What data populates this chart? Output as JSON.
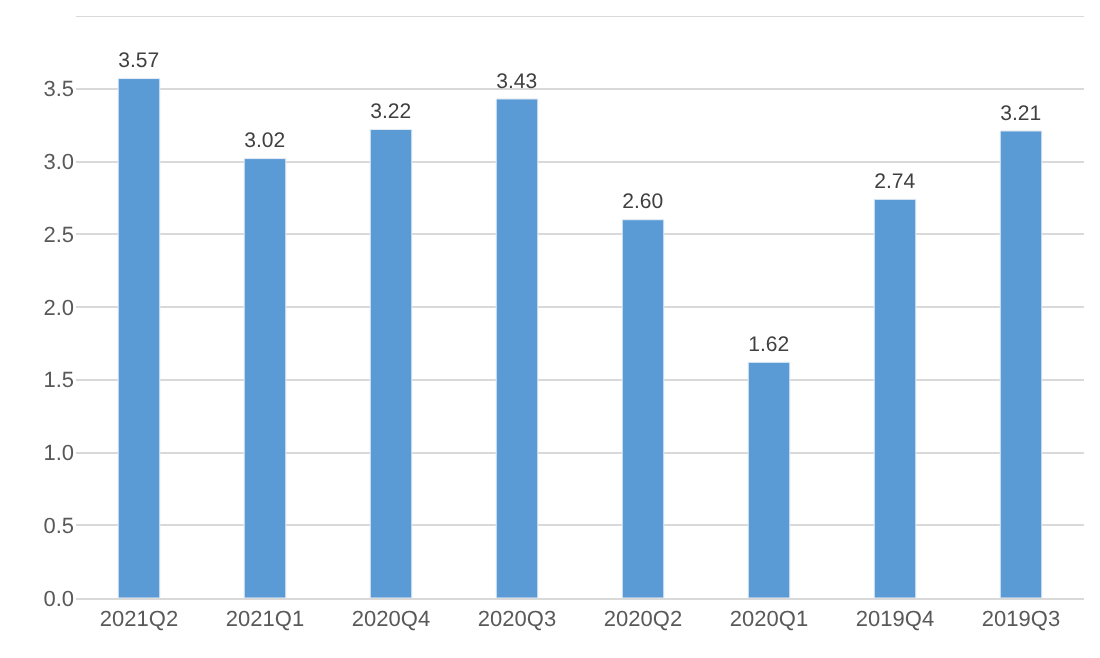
{
  "chart_data": {
    "type": "bar",
    "categories": [
      "2021Q2",
      "2021Q1",
      "2020Q4",
      "2020Q3",
      "2020Q2",
      "2020Q1",
      "2019Q4",
      "2019Q3"
    ],
    "values": [
      3.57,
      3.02,
      3.22,
      3.43,
      2.6,
      1.62,
      2.74,
      3.21
    ],
    "value_labels": [
      "3.57",
      "3.02",
      "3.22",
      "3.43",
      "2.60",
      "1.62",
      "2.74",
      "3.21"
    ],
    "color": "#5b9bd5",
    "ylim": [
      0,
      4.0
    ],
    "yticks": [
      {
        "value": 0,
        "label": "0.0"
      },
      {
        "value": 0.5,
        "label": "0.5"
      },
      {
        "value": 1.0,
        "label": "1.0"
      },
      {
        "value": 1.5,
        "label": "1.5"
      },
      {
        "value": 2.0,
        "label": "2.0"
      },
      {
        "value": 2.5,
        "label": "2.5"
      },
      {
        "value": 3.0,
        "label": "3.0"
      },
      {
        "value": 3.5,
        "label": "3.5"
      },
      {
        "value": 4.0,
        "label": null
      }
    ],
    "grid": "y",
    "legend": false
  }
}
